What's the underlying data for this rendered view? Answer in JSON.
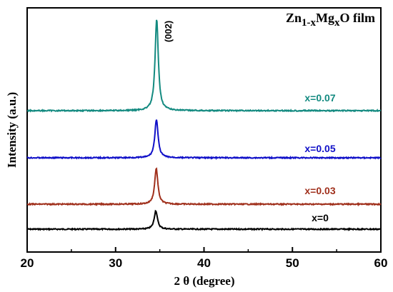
{
  "chart_data": {
    "type": "line",
    "title_parts": {
      "base": "Zn",
      "sub1": "1-x",
      "mid": "Mg",
      "sub2": "x",
      "tail": "O film"
    },
    "xlabel": "2 θ (degree)",
    "ylabel": "Intensity (a.u.)",
    "xlim": [
      20,
      60
    ],
    "xticks": [
      "20",
      "30",
      "40",
      "50",
      "60"
    ],
    "grid": false,
    "annotation": "(002)",
    "series": [
      {
        "name": "x=0",
        "color": "#000000",
        "peak_center": 34.55,
        "peak_height": 0.9
      },
      {
        "name": "x=0.03",
        "color": "#a0301c",
        "peak_center": 34.6,
        "peak_height": 1.5
      },
      {
        "name": "x=0.05",
        "color": "#1010c8",
        "peak_center": 34.62,
        "peak_height": 1.8
      },
      {
        "name": "x=0.07",
        "color": "#138a80",
        "peak_center": 34.65,
        "peak_height": 4.5
      }
    ]
  }
}
